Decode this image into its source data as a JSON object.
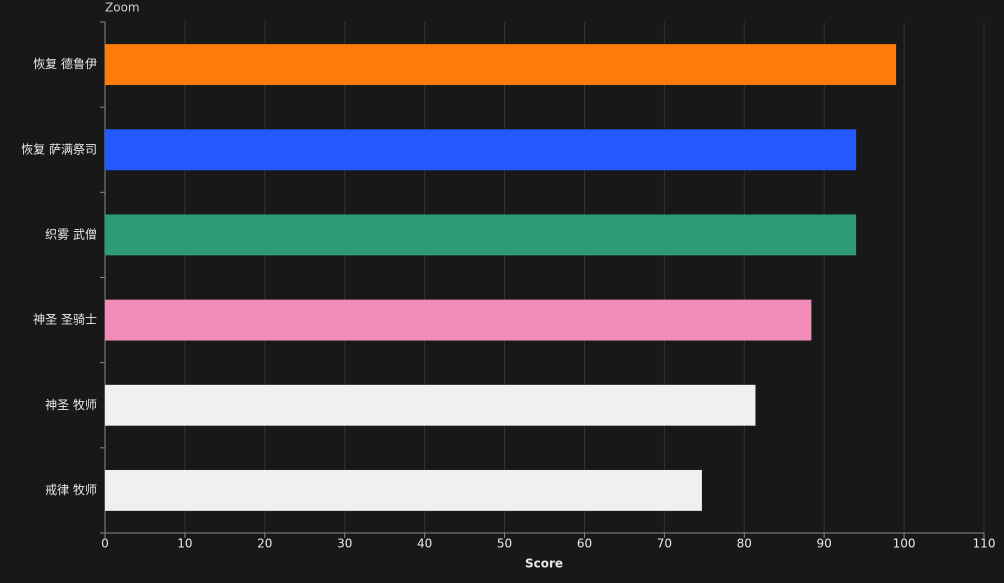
{
  "chart_data": {
    "type": "bar",
    "orientation": "horizontal",
    "zoom_label": "Zoom",
    "x_label": "Score",
    "categories": [
      "恢复 德鲁伊",
      "恢复 萨满祭司",
      "织雾 武僧",
      "神圣 圣骑士",
      "神圣 牧师",
      "戒律 牧师"
    ],
    "values": [
      99.0,
      94.0,
      94.0,
      88.4,
      81.4,
      74.7
    ],
    "colors": [
      "#ff7c0a",
      "#2459ff",
      "#2e9b77",
      "#f48cba",
      "#f0f0f0",
      "#f0f0f0"
    ],
    "xlim": [
      0,
      110
    ],
    "xticks": [
      0,
      10,
      20,
      30,
      40,
      50,
      60,
      70,
      80,
      90,
      100,
      110
    ],
    "grid": true
  }
}
